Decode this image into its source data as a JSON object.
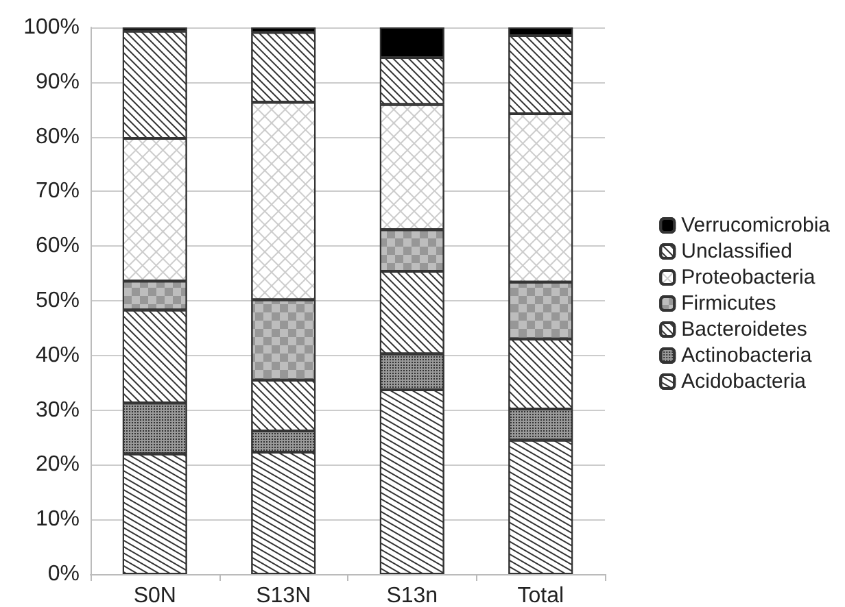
{
  "chart_data": {
    "type": "bar",
    "stacked": true,
    "categories": [
      "S0N",
      "S13N",
      "S13n",
      "Total"
    ],
    "series": [
      {
        "name": "Acidobacteria",
        "color": "#ffffff",
        "values": [
          22,
          22.3,
          33.7,
          24.5
        ]
      },
      {
        "name": "Actinobacteria",
        "color": "#9a9a9a",
        "values": [
          9.3,
          3.9,
          6.6,
          5.7
        ]
      },
      {
        "name": "Bacteroidetes",
        "color": "#ffffff",
        "values": [
          17,
          9.3,
          15.1,
          12.8
        ]
      },
      {
        "name": "Firmicutes",
        "color": "#bdbdbd",
        "values": [
          5.3,
          14.7,
          7.6,
          10.4
        ]
      },
      {
        "name": "Proteobacteria",
        "color": "#ffffff",
        "values": [
          26.1,
          36.1,
          22.9,
          30.8
        ]
      },
      {
        "name": "Unclassified",
        "color": "#ffffff",
        "values": [
          19.6,
          12.8,
          8.6,
          14.3
        ]
      },
      {
        "name": "Verrucomicrobia",
        "color": "#000000",
        "values": [
          0.7,
          0.9,
          5.5,
          1.5
        ]
      }
    ],
    "ylim": [
      0,
      100
    ],
    "yticks": [
      {
        "value": 0,
        "label": "0%"
      },
      {
        "value": 10,
        "label": "10%"
      },
      {
        "value": 20,
        "label": "20%"
      },
      {
        "value": 30,
        "label": "30%"
      },
      {
        "value": 40,
        "label": "40%"
      },
      {
        "value": 50,
        "label": "50%"
      },
      {
        "value": 60,
        "label": "60%"
      },
      {
        "value": 70,
        "label": "70%"
      },
      {
        "value": 80,
        "label": "80%"
      },
      {
        "value": 90,
        "label": "90%"
      },
      {
        "value": 100,
        "label": "100%"
      }
    ],
    "grid": "y",
    "legend": "right"
  }
}
